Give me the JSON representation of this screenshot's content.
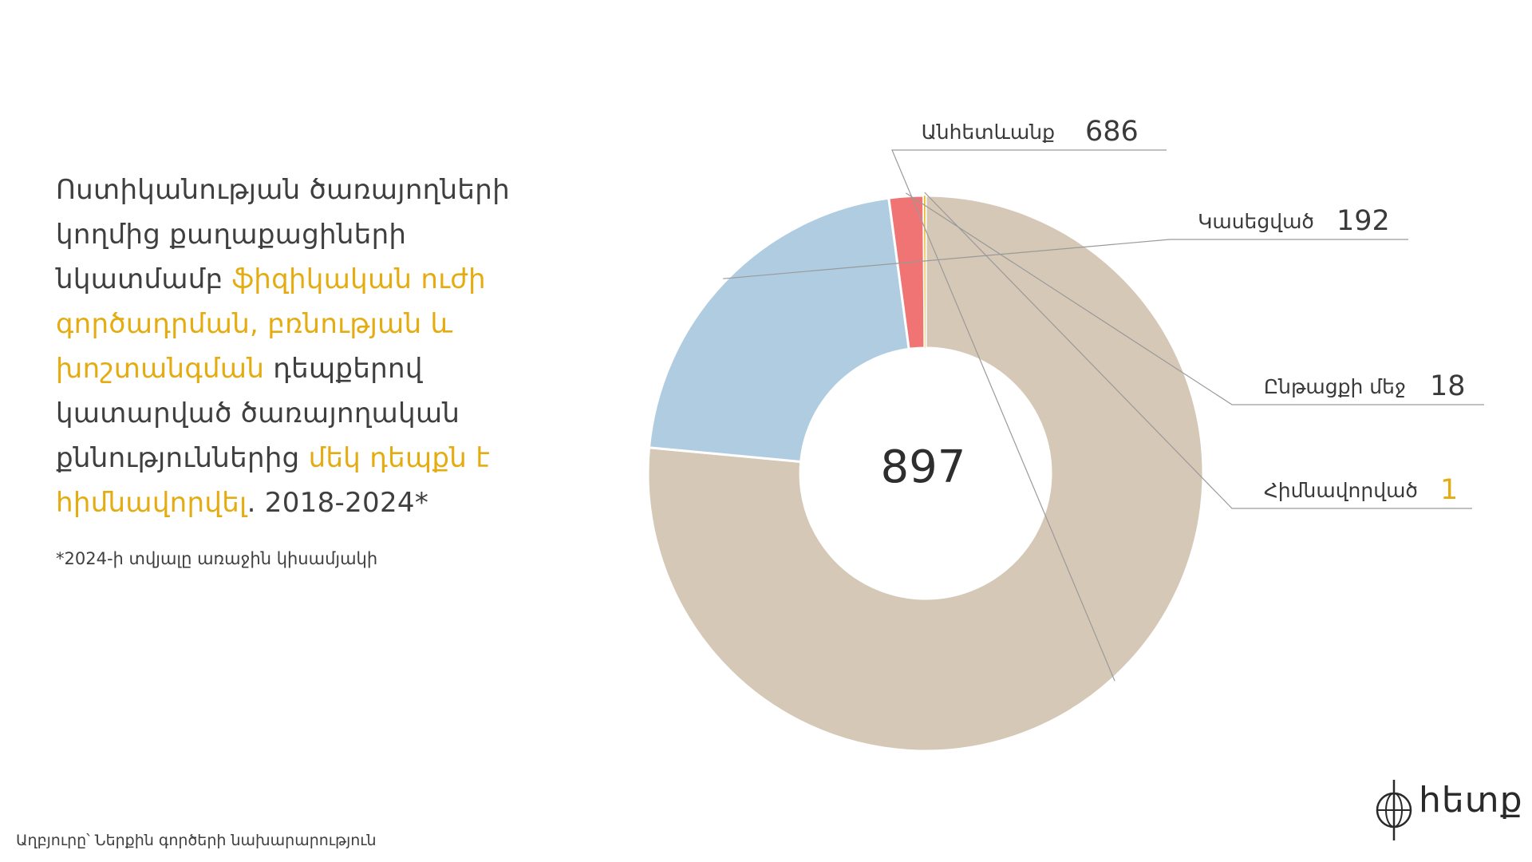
{
  "headline": {
    "p1": "Ոստիկանության ծառայողների կողմից քաղաքացիների նկատմամբ ",
    "h1": "ֆիզիկական ուժի գործադրման, բռնության և խոշտանգման",
    "p2": " դեպքերով կատարված ծառայողական քննություններից ",
    "h2": "մեկ դեպքն է հիմնավորվել",
    "p3": ". 2018-2024*"
  },
  "footnote": "*2024-ի տվյալը առաջին կիսամյակի",
  "source": "Աղբյուրը՝ Ներքին գործերի նախարարություն",
  "logo": {
    "text": "hետք"
  },
  "chart_data": {
    "type": "pie",
    "donut": true,
    "total_label": "897",
    "series": [
      {
        "name": "Անհետևանք",
        "value": 686,
        "color": "#d5c8b6",
        "value_color": "#3a3a3a"
      },
      {
        "name": "Կասեցված",
        "value": 192,
        "color": "#b0cce1",
        "value_color": "#3a3a3a"
      },
      {
        "name": "Ընթացքի մեջ",
        "value": 18,
        "color": "#f07474",
        "value_color": "#3a3a3a"
      },
      {
        "name": "Հիմնավորված",
        "value": 1,
        "color": "#e8b92a",
        "value_color": "#e5ac12"
      }
    ]
  }
}
